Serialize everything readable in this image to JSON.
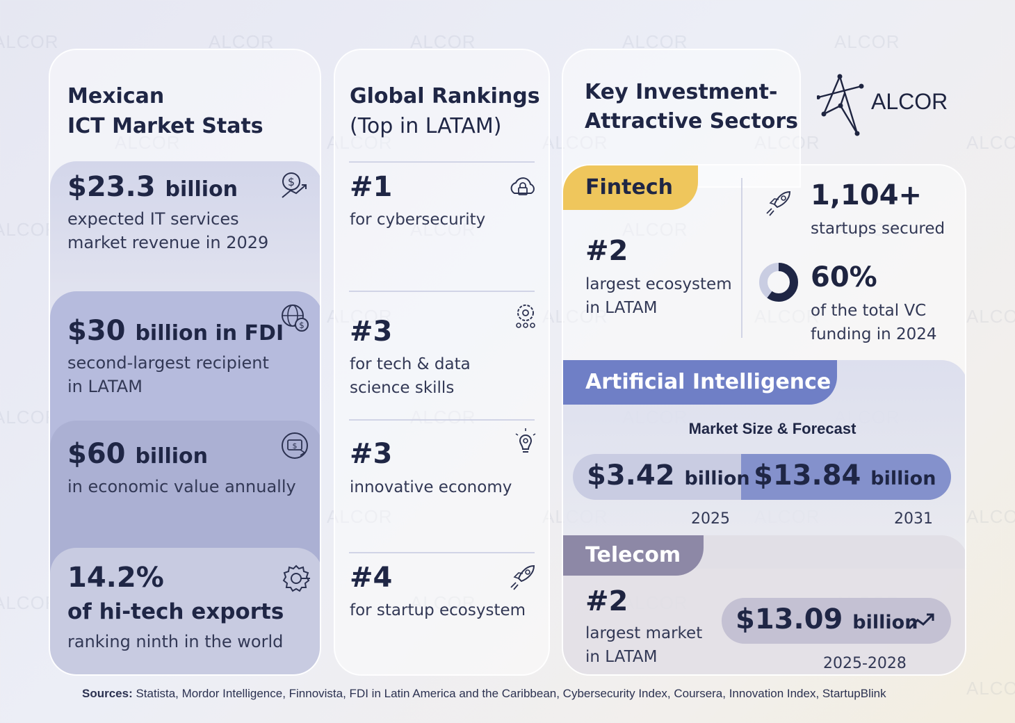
{
  "watermark": "ALCOR",
  "brand": {
    "name": "ALCOR"
  },
  "colors": {
    "fintech": "#efc65c",
    "ai": "#6f7fc6",
    "telecom": "#8d88a6",
    "dark": "#1f2645"
  },
  "col1": {
    "title_line1": "Mexican",
    "title_line2": "ICT Market Stats",
    "stats": [
      {
        "big": "$23.3",
        "unit": "billion",
        "desc1": "expected IT services",
        "desc2": "market revenue in 2029",
        "icon": "dollar-growth-icon"
      },
      {
        "big": "$30",
        "unit": "billion in FDI",
        "desc1": "second-largest recipient",
        "desc2": "in LATAM",
        "icon": "globe-dollar-icon"
      },
      {
        "big": "$60",
        "unit": "billion",
        "desc1": "in economic value annually",
        "desc2": "",
        "icon": "money-exchange-icon"
      },
      {
        "big": "14.2%",
        "unit": "of hi-tech exports",
        "desc1": "ranking ninth in the world",
        "desc2": "",
        "icon": "gear-circuit-icon"
      }
    ]
  },
  "col2": {
    "title_line1": "Global Rankings",
    "title_line2": "(Top in LATAM)",
    "ranks": [
      {
        "num": "#1",
        "desc1": "for cybersecurity",
        "desc2": "",
        "icon": "cloud-lock-icon"
      },
      {
        "num": "#3",
        "desc1": "for tech & data",
        "desc2": "science skills",
        "icon": "gear-people-icon"
      },
      {
        "num": "#3",
        "desc1": "innovative economy",
        "desc2": "",
        "icon": "lightbulb-icon"
      },
      {
        "num": "#4",
        "desc1": "for startup ecosystem",
        "desc2": "",
        "icon": "rocket-icon"
      }
    ]
  },
  "col3": {
    "title_line1": "Key Investment-",
    "title_line2": "Attractive Sectors",
    "fintech": {
      "label": "Fintech",
      "rank": "#2",
      "rank_desc1": "largest ecosystem",
      "rank_desc2": "in LATAM",
      "startups_value": "1,104+",
      "startups_desc": "startups secured",
      "vc_value": "60%",
      "vc_fraction": 0.6,
      "vc_desc1": "of the total VC",
      "vc_desc2": "funding in 2024"
    },
    "ai": {
      "label": "Artificial Intelligence",
      "subtitle": "Market Size & Forecast",
      "value_2025": "$3.42",
      "unit": "billion",
      "year_2025": "2025",
      "value_2031": "$13.84",
      "year_2031": "2031"
    },
    "telecom": {
      "label": "Telecom",
      "rank": "#2",
      "rank_desc1": "largest market",
      "rank_desc2": "in LATAM",
      "value": "$13.09",
      "unit": "billion",
      "period": "2025-2028"
    }
  },
  "sources": {
    "label": "Sources:",
    "text": " Statista, Mordor Intelligence, Finnovista, FDI in Latin America and the Caribbean, Cybersecurity Index, Coursera, Innovation Index, StartupBlink"
  }
}
